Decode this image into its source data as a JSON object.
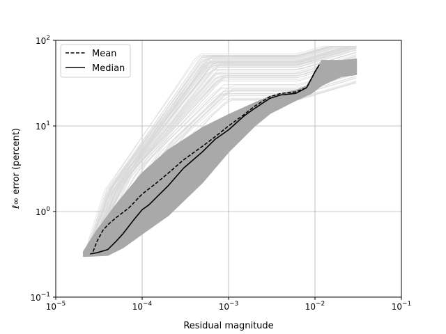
{
  "chart_data": {
    "type": "line",
    "title": "",
    "xlabel": "Residual magnitude",
    "ylabel": "ℓ∞ error (percent)",
    "xscale": "log",
    "yscale": "log",
    "xlim": [
      1e-05,
      0.1
    ],
    "ylim": [
      0.1,
      100
    ],
    "grid": true,
    "legend_position": "top-left",
    "x_ticks": [
      {
        "value": 1e-05,
        "base": "10",
        "exp": "−5"
      },
      {
        "value": 0.0001,
        "base": "10",
        "exp": "−4"
      },
      {
        "value": 0.001,
        "base": "10",
        "exp": "−3"
      },
      {
        "value": 0.01,
        "base": "10",
        "exp": "−2"
      },
      {
        "value": 0.1,
        "base": "10",
        "exp": "−1"
      }
    ],
    "y_ticks": [
      {
        "value": 0.1,
        "base": "10",
        "exp": "−1"
      },
      {
        "value": 1,
        "base": "10",
        "exp": "0"
      },
      {
        "value": 10,
        "base": "10",
        "exp": "1"
      },
      {
        "value": 100,
        "base": "10",
        "exp": "2"
      }
    ],
    "background_band": {
      "color": "#a9a9a9",
      "upper": [
        [
          2.1e-05,
          0.34
        ],
        [
          3e-05,
          0.6
        ],
        [
          5e-05,
          1.2
        ],
        [
          0.0001,
          2.8
        ],
        [
          0.0002,
          5.2
        ],
        [
          0.0005,
          9.5
        ],
        [
          0.001,
          13.5
        ],
        [
          0.002,
          18.5
        ],
        [
          0.003,
          22
        ],
        [
          0.006,
          26
        ],
        [
          0.008,
          29
        ],
        [
          0.0105,
          45
        ],
        [
          0.012,
          58
        ],
        [
          0.02,
          58
        ],
        [
          0.03,
          60
        ]
      ],
      "lower": [
        [
          0.03,
          40
        ],
        [
          0.02,
          38
        ],
        [
          0.012,
          30
        ],
        [
          0.009,
          24
        ],
        [
          0.006,
          20
        ],
        [
          0.003,
          14
        ],
        [
          0.002,
          10
        ],
        [
          0.001,
          5
        ],
        [
          0.0005,
          2.2
        ],
        [
          0.0002,
          0.9
        ],
        [
          0.0001,
          0.55
        ],
        [
          6e-05,
          0.38
        ],
        [
          4e-05,
          0.31
        ],
        [
          2.1e-05,
          0.3
        ]
      ]
    },
    "faint_curves": {
      "color": "#d9d9d9",
      "count": 70
    },
    "series": [
      {
        "name": "Mean",
        "style": "dashed",
        "color": "#000000",
        "points": [
          [
            2.7e-05,
            0.34
          ],
          [
            3e-05,
            0.45
          ],
          [
            3.5e-05,
            0.6
          ],
          [
            4e-05,
            0.7
          ],
          [
            5e-05,
            0.85
          ],
          [
            7e-05,
            1.1
          ],
          [
            0.0001,
            1.6
          ],
          [
            0.00015,
            2.2
          ],
          [
            0.0002,
            2.8
          ],
          [
            0.0003,
            4
          ],
          [
            0.0005,
            5.8
          ],
          [
            0.0007,
            7.5
          ],
          [
            0.001,
            10
          ],
          [
            0.0015,
            13.5
          ],
          [
            0.002,
            17
          ],
          [
            0.003,
            22
          ],
          [
            0.004,
            24
          ],
          [
            0.006,
            25
          ],
          [
            0.008,
            28
          ],
          [
            0.009,
            35
          ],
          [
            0.01,
            43
          ],
          [
            0.011,
            50
          ]
        ]
      },
      {
        "name": "Median",
        "style": "solid",
        "color": "#000000",
        "points": [
          [
            2.5e-05,
            0.32
          ],
          [
            3e-05,
            0.33
          ],
          [
            4e-05,
            0.36
          ],
          [
            5e-05,
            0.45
          ],
          [
            6e-05,
            0.55
          ],
          [
            8e-05,
            0.8
          ],
          [
            0.0001,
            1.05
          ],
          [
            0.00012,
            1.2
          ],
          [
            0.00015,
            1.5
          ],
          [
            0.0002,
            2
          ],
          [
            0.0003,
            3.2
          ],
          [
            0.0005,
            5
          ],
          [
            0.0007,
            7
          ],
          [
            0.001,
            9
          ],
          [
            0.0015,
            13
          ],
          [
            0.002,
            16
          ],
          [
            0.003,
            21
          ],
          [
            0.004,
            23
          ],
          [
            0.006,
            24
          ],
          [
            0.008,
            28
          ],
          [
            0.009,
            35
          ],
          [
            0.01,
            43
          ],
          [
            0.0112,
            52
          ]
        ]
      }
    ]
  }
}
